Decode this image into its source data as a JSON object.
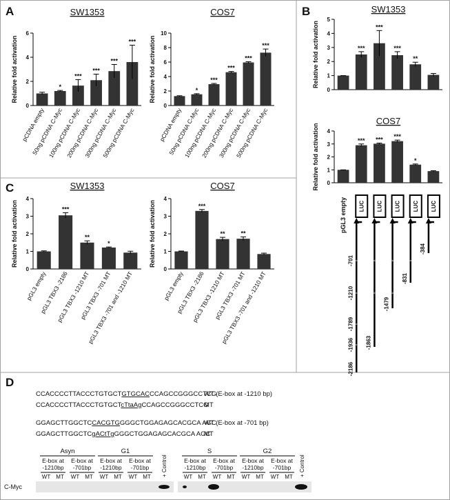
{
  "panel_labels": [
    "A",
    "B",
    "C",
    "D"
  ],
  "chart_data": [
    {
      "type": "bar",
      "title": "SW1353",
      "y_label": "Relative fold activation",
      "categories": [
        "pCDNA empty",
        "50ng pCDNA C-Myc",
        "100ng pCDNA C-Myc",
        "200ng pCDNA C-Myc",
        "300ng pCDNA C-Myc",
        "500ng pCDNA C-Myc"
      ],
      "values": [
        1.0,
        1.2,
        1.65,
        2.1,
        2.85,
        3.6
      ],
      "errors": [
        0.1,
        0.05,
        0.5,
        0.5,
        0.55,
        1.4
      ],
      "significance": [
        null,
        "*",
        "***",
        "***",
        "***",
        "***"
      ],
      "color": "#333333",
      "ylim": [
        0,
        6
      ],
      "yticks": [
        0,
        2,
        4,
        6
      ]
    },
    {
      "type": "bar",
      "title": "COS7",
      "y_label": "Relative fold activation",
      "categories": [
        "pCDNA empty",
        "50ng pCDNA C-Myc",
        "100ng pCDNA C-Myc",
        "200ng pCDNA C-Myc",
        "300ng pCDNA C-Myc",
        "500ng pCDNA C-Myc"
      ],
      "values": [
        1.3,
        1.55,
        2.95,
        4.6,
        5.95,
        7.3
      ],
      "errors": [
        0.05,
        0.08,
        0.1,
        0.1,
        0.1,
        0.5
      ],
      "significance": [
        null,
        "*",
        "***",
        "***",
        "***",
        "***"
      ],
      "color": "#333333",
      "ylim": [
        0,
        10
      ],
      "yticks": [
        0,
        2,
        4,
        6,
        8,
        10
      ]
    },
    {
      "type": "bar",
      "title": "SW1353",
      "y_label": "Relative fold activation",
      "values": [
        1.0,
        2.5,
        3.3,
        2.45,
        1.8,
        1.05
      ],
      "errors": [
        0,
        0.2,
        0.9,
        0.25,
        0.15,
        0.1
      ],
      "significance": [
        null,
        "***",
        "***",
        "***",
        "**",
        null
      ],
      "color": "#333333",
      "ylim": [
        0,
        5
      ],
      "yticks": [
        0,
        1,
        2,
        3,
        4,
        5
      ]
    },
    {
      "type": "bar",
      "title": "COS7",
      "y_label": "Relative fold activation",
      "values": [
        1.0,
        2.9,
        3.02,
        3.22,
        1.4,
        0.9
      ],
      "errors": [
        0,
        0.1,
        0.05,
        0.08,
        0.05,
        0.03
      ],
      "significance": [
        null,
        "***",
        "***",
        "***",
        "*",
        null
      ],
      "color": "#333333",
      "ylim": [
        0,
        4
      ],
      "yticks": [
        0,
        1,
        2,
        3,
        4
      ]
    },
    {
      "type": "bar",
      "title": "SW1353",
      "y_label": "Relative fold activation",
      "categories": [
        "pGL3 empty",
        "pGL3 TBX3 -2186",
        "pGL3 TBX3 -1210 MT",
        "pGL3 TBX3 -701 MT",
        "pGL3 TBX3 -701 and -1210 MT"
      ],
      "values": [
        1.0,
        3.05,
        1.5,
        1.22,
        0.93
      ],
      "errors": [
        0.03,
        0.15,
        0.1,
        0.03,
        0.08
      ],
      "significance": [
        null,
        "***",
        "**",
        "*",
        null
      ],
      "color": "#333333",
      "ylim": [
        0,
        4
      ],
      "yticks": [
        0,
        1,
        2,
        3,
        4
      ]
    },
    {
      "type": "bar",
      "title": "COS7",
      "y_label": "Relative fold activation",
      "categories": [
        "pGL3 empty",
        "pGL3 TBX3 -2186",
        "pGL3 TBX3 -1210 MT",
        "pGL3 TBX3 -701 MT",
        "pGL3 TBX3 -701 and -1210 MT"
      ],
      "values": [
        1.0,
        3.3,
        1.7,
        1.72,
        0.85
      ],
      "errors": [
        0.02,
        0.08,
        0.1,
        0.1,
        0.05
      ],
      "significance": [
        null,
        "***",
        "**",
        "**",
        null
      ],
      "color": "#333333",
      "ylim": [
        0,
        4
      ],
      "yticks": [
        0,
        1,
        2,
        3,
        4
      ]
    }
  ],
  "promoter_diagram": {
    "empty_label": "pGL3 empty",
    "box_label": "LUC",
    "constructs": [
      [
        "-701",
        "-1210",
        "-1789",
        "-1936",
        "-2186"
      ],
      [
        "-1863"
      ],
      [
        "-1479"
      ],
      [
        "-831"
      ],
      [
        "-384"
      ]
    ]
  },
  "sequences": [
    {
      "parts": [
        "CCACCCCTTACCCTGTGCT",
        "GTGCAC",
        "CCAGCCGGGCCTCG"
      ],
      "label": "WT (E-box at -1210 bp)"
    },
    {
      "parts": [
        "CCACCCCTTACCCTGTGCT",
        "cTtaAg",
        "CCAGCCGGGCCTCG"
      ],
      "label": "MT"
    },
    {
      "parts": [
        "GGAGCTTGGCTC",
        "CACGTG",
        "GGGCTGGAGAGCACGCA AGC"
      ],
      "label": "WT (E-box at -701 bp)"
    },
    {
      "parts": [
        "GGAGCTTGGCTC",
        "gACtTg",
        "GGGCTGGAGAGCACGCA AGC"
      ],
      "label": "MT"
    }
  ],
  "gel": {
    "groups": [
      "Asyn",
      "G1",
      "S",
      "G2"
    ],
    "subgroups": [
      [
        "E-box at",
        "-1210bp"
      ],
      [
        "E-box at",
        "-701bp"
      ]
    ],
    "lanes": [
      "WT",
      "MT"
    ],
    "control": "+ Control",
    "row_label": "C-Myc"
  }
}
